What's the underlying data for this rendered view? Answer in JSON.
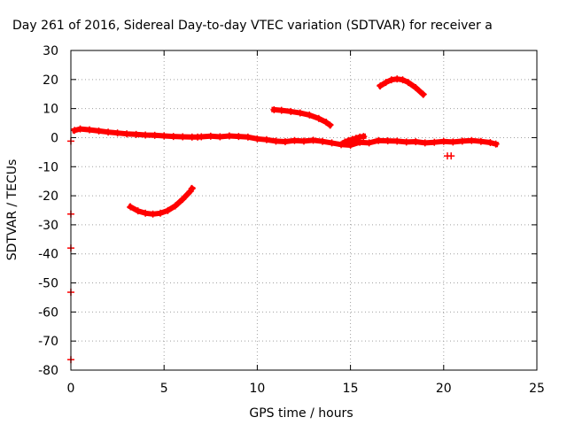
{
  "chart_data": {
    "type": "scatter",
    "title": "Day 261 of 2016, Sidereal Day-to-day VTEC variation (SDTVAR) for receiver a",
    "xlabel": "GPS time / hours",
    "ylabel": "SDTVAR / TECUs",
    "xlim": [
      0,
      25
    ],
    "ylim": [
      -80,
      30
    ],
    "xticks": [
      "0",
      "5",
      "10",
      "15",
      "20",
      "25"
    ],
    "yticks": [
      "30",
      "20",
      "10",
      "0",
      "-10",
      "-20",
      "-30",
      "-40",
      "-50",
      "-60",
      "-70",
      "-80"
    ],
    "grid": true,
    "legend": "none",
    "series": [
      {
        "values": [
          [
            0.2,
            2.5
          ],
          [
            0.5,
            3.0
          ],
          [
            1.0,
            2.7
          ],
          [
            1.5,
            2.3
          ],
          [
            2.0,
            1.9
          ],
          [
            2.5,
            1.6
          ],
          [
            3.0,
            1.3
          ],
          [
            3.5,
            1.1
          ],
          [
            4.0,
            0.9
          ],
          [
            4.5,
            0.8
          ],
          [
            5.0,
            0.6
          ],
          [
            5.5,
            0.4
          ],
          [
            6.0,
            0.3
          ],
          [
            6.5,
            0.2
          ],
          [
            6.8,
            0.2
          ],
          [
            7.0,
            0.3
          ],
          [
            7.5,
            0.5
          ],
          [
            8.0,
            0.3
          ],
          [
            8.5,
            0.6
          ],
          [
            9.0,
            0.4
          ],
          [
            9.5,
            0.2
          ],
          [
            10.0,
            -0.4
          ],
          [
            10.5,
            -0.7
          ],
          [
            11.0,
            -1.2
          ],
          [
            11.5,
            -1.4
          ],
          [
            12.0,
            -1.0
          ],
          [
            12.5,
            -1.2
          ],
          [
            13.0,
            -0.9
          ],
          [
            13.5,
            -1.3
          ],
          [
            14.0,
            -1.8
          ],
          [
            14.5,
            -2.4
          ],
          [
            15.0,
            -2.6
          ],
          [
            15.5,
            -1.6
          ],
          [
            16.0,
            -1.8
          ],
          [
            16.5,
            -1.0
          ],
          [
            17.0,
            -1.1
          ],
          [
            17.5,
            -1.2
          ],
          [
            18.0,
            -1.5
          ],
          [
            18.5,
            -1.4
          ],
          [
            19.0,
            -1.8
          ],
          [
            19.5,
            -1.6
          ],
          [
            20.0,
            -1.3
          ],
          [
            20.5,
            -1.5
          ],
          [
            21.0,
            -1.2
          ],
          [
            21.5,
            -1.0
          ],
          [
            22.0,
            -1.3
          ],
          [
            22.5,
            -1.7
          ],
          [
            22.8,
            -2.2
          ]
        ]
      },
      {
        "values": [
          [
            3.2,
            -23.8
          ],
          [
            3.6,
            -25.2
          ],
          [
            4.0,
            -26.0
          ],
          [
            4.4,
            -26.3
          ],
          [
            4.8,
            -26.0
          ],
          [
            5.2,
            -25.1
          ],
          [
            5.6,
            -23.5
          ],
          [
            6.0,
            -21.2
          ],
          [
            6.4,
            -18.5
          ],
          [
            6.5,
            -17.5
          ]
        ]
      },
      {
        "values": [
          [
            10.9,
            9.6
          ],
          [
            11.3,
            9.4
          ],
          [
            11.8,
            9.0
          ],
          [
            12.3,
            8.5
          ],
          [
            12.8,
            7.8
          ],
          [
            13.3,
            6.6
          ],
          [
            13.7,
            5.3
          ],
          [
            13.9,
            4.3
          ]
        ]
      },
      {
        "values": [
          [
            16.6,
            17.8
          ],
          [
            16.9,
            19.0
          ],
          [
            17.2,
            19.9
          ],
          [
            17.5,
            20.2
          ],
          [
            17.8,
            19.9
          ],
          [
            18.1,
            19.0
          ],
          [
            18.5,
            17.2
          ],
          [
            18.9,
            14.9
          ]
        ]
      },
      {
        "values": [
          [
            14.7,
            -1.5
          ],
          [
            14.9,
            -1.0
          ],
          [
            15.1,
            -0.6
          ],
          [
            15.3,
            -0.2
          ],
          [
            15.5,
            0.2
          ],
          [
            15.7,
            0.4
          ]
        ]
      },
      {
        "values": [
          [
            20.2,
            -6.3
          ],
          [
            20.4,
            -6.3
          ]
        ]
      },
      {
        "values": [
          [
            0.0,
            -1.2
          ],
          [
            0.0,
            -26.3
          ],
          [
            0.0,
            -38.0
          ],
          [
            0.0,
            -53.2
          ],
          [
            0.0,
            -76.4
          ]
        ]
      }
    ],
    "colors": {
      "series": "#ff0000",
      "grid": "#a0a0a0",
      "axis": "#000000"
    }
  }
}
